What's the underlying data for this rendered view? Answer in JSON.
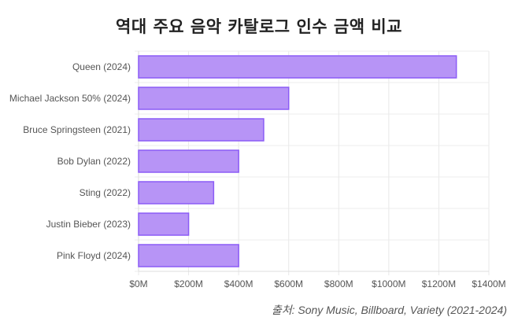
{
  "chart_data": {
    "type": "bar",
    "orientation": "horizontal",
    "title": "역대 주요 음악 카탈로그 인수 금액 비교",
    "categories": [
      "Queen (2024)",
      "Michael Jackson 50% (2024)",
      "Bruce Springsteen (2021)",
      "Bob Dylan (2022)",
      "Sting (2022)",
      "Justin Bieber (2023)",
      "Pink Floyd (2024)"
    ],
    "values": [
      1270,
      600,
      500,
      400,
      300,
      200,
      400
    ],
    "unit": "$M",
    "xlim": [
      0,
      1400
    ],
    "xticks": [
      "$0M",
      "$200M",
      "$400M",
      "$600M",
      "$800M",
      "$1000M",
      "$1200M",
      "$1400M"
    ],
    "grid": true,
    "bar_color": "#b794f6",
    "bar_border": "#8b5cf6",
    "source": "출처: Sony Music, Billboard, Variety (2021-2024)"
  }
}
